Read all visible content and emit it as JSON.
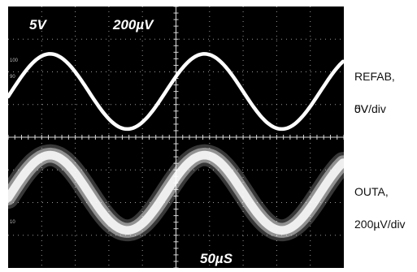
{
  "scope": {
    "screen_color": "#000000",
    "trace_color": "#ffffff",
    "grid_color": "#d9d9d9",
    "ch1_scale": "5V",
    "ch2_scale": "200µV",
    "timebase": "50µS",
    "tick_100": "100",
    "tick_90": "90",
    "tick_10": "10"
  },
  "labels": {
    "refab_line1": "REFAB,",
    "refab_line2": "5V/div",
    "zero_volt": "0V",
    "outa_line1": "OUTA,",
    "outa_line2": "200µV/div"
  },
  "chart_data": {
    "type": "line",
    "grid": {
      "x_divisions": 10,
      "y_divisions": 8
    },
    "x_unit": "divisions",
    "y_unit": "divisions",
    "series": [
      {
        "trace": "REFAB",
        "center_div": 5.4,
        "amplitude_div": 1.15,
        "period_div": 4.6,
        "phase_div": 1.25,
        "noise_div": 0.0
      },
      {
        "trace": "OUTA",
        "center_div": 2.3,
        "amplitude_div": 1.15,
        "period_div": 4.6,
        "phase_div": 1.25,
        "noise_div": 0.35
      }
    ],
    "x": [
      0,
      0.5,
      1,
      1.5,
      2,
      2.5,
      3,
      3.5,
      4,
      4.5,
      5,
      5.5,
      6,
      6.5,
      7,
      7.5,
      8,
      8.5,
      9,
      9.5,
      10
    ]
  }
}
